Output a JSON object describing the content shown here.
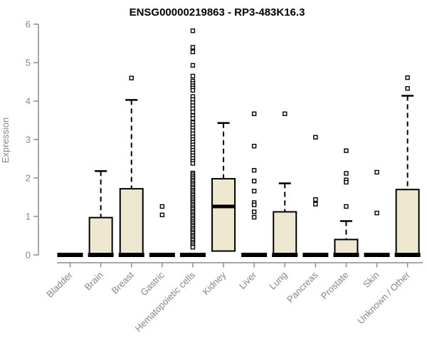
{
  "chart_data": {
    "type": "boxplot",
    "title": "ENSG00000219863 - RP3-483K16.3",
    "ylabel": "Expression",
    "xlabel": "",
    "ylim": [
      0,
      6
    ],
    "yticks": [
      0,
      1,
      2,
      3,
      4,
      5,
      6
    ],
    "grid": false,
    "legend": false,
    "categories": [
      "Bladder",
      "Brain",
      "Breast",
      "Gastric",
      "Hematopoietic cells",
      "Kidney",
      "Liver",
      "Lung",
      "Pancreas",
      "Prostate",
      "Skin",
      "Unknown / Other"
    ],
    "colors": {
      "box_fill": "#EDE8CF",
      "box_stroke": "#000000",
      "axis": "#8c8c8c",
      "tick_label": "#858585",
      "title": "#000000",
      "background": "#ffffff"
    },
    "boxes": [
      {
        "category": "Bladder",
        "q1": 0,
        "median": 0,
        "q3": 0,
        "whisker_low": 0,
        "whisker_high": 0,
        "outliers": []
      },
      {
        "category": "Brain",
        "q1": 0,
        "median": 0,
        "q3": 0.97,
        "whisker_low": 0,
        "whisker_high": 2.18,
        "outliers": []
      },
      {
        "category": "Breast",
        "q1": 0,
        "median": 0,
        "q3": 1.72,
        "whisker_low": 0,
        "whisker_high": 4.03,
        "outliers": [
          4.6
        ]
      },
      {
        "category": "Gastric",
        "q1": 0,
        "median": 0,
        "q3": 0,
        "whisker_low": 0,
        "whisker_high": 0,
        "outliers": [
          1.26,
          1.04
        ]
      },
      {
        "category": "Hematopoietic cells",
        "q1": 0,
        "median": 0,
        "q3": 0,
        "whisker_low": 0,
        "whisker_high": 0,
        "outliers": [
          5.83,
          5.4,
          5.28,
          4.93,
          4.65,
          4.52,
          4.46,
          4.4,
          4.34,
          4.28,
          4.12,
          4.04,
          3.96,
          3.88,
          3.8,
          3.72,
          3.62,
          3.55,
          3.44,
          3.37,
          3.3,
          3.23,
          3.15,
          3.07,
          3.0,
          2.93,
          2.86,
          2.79,
          2.72,
          2.65,
          2.58,
          2.51,
          2.44,
          2.38,
          2.13,
          2.09,
          2.04,
          2.0,
          1.95,
          1.91,
          1.86,
          1.82,
          1.77,
          1.73,
          1.68,
          1.64,
          1.59,
          1.55,
          1.5,
          1.46,
          1.41,
          1.37,
          1.32,
          1.28,
          1.23,
          1.19,
          1.14,
          1.1,
          1.05,
          1.01,
          0.96,
          0.92,
          0.87,
          0.83,
          0.78,
          0.74,
          0.69,
          0.65,
          0.6,
          0.56,
          0.51,
          0.47,
          0.42,
          0.38,
          0.33,
          0.29,
          0.24,
          0.2
        ]
      },
      {
        "category": "Kidney",
        "q1": 0.1,
        "median": 1.26,
        "q3": 1.98,
        "whisker_low": 0.1,
        "whisker_high": 3.43,
        "outliers": []
      },
      {
        "category": "Liver",
        "q1": 0,
        "median": 0,
        "q3": 0,
        "whisker_low": 0,
        "whisker_high": 0,
        "outliers": [
          3.67,
          2.83,
          2.2,
          1.92,
          1.66,
          1.36,
          1.3,
          1.12,
          0.98
        ]
      },
      {
        "category": "Lung",
        "q1": 0,
        "median": 0,
        "q3": 1.12,
        "whisker_low": 0,
        "whisker_high": 1.86,
        "outliers": [
          3.67
        ]
      },
      {
        "category": "Pancreas",
        "q1": 0,
        "median": 0,
        "q3": 0,
        "whisker_low": 0,
        "whisker_high": 0,
        "outliers": [
          3.06,
          1.44,
          1.32
        ]
      },
      {
        "category": "Prostate",
        "q1": 0,
        "median": 0,
        "q3": 0.4,
        "whisker_low": 0,
        "whisker_high": 0.88,
        "outliers": [
          2.71,
          2.12,
          1.95,
          1.89,
          1.26
        ]
      },
      {
        "category": "Skin",
        "q1": 0,
        "median": 0,
        "q3": 0,
        "whisker_low": 0,
        "whisker_high": 0,
        "outliers": [
          2.15,
          1.09
        ]
      },
      {
        "category": "Unknown / Other",
        "q1": 0,
        "median": 0,
        "q3": 1.7,
        "whisker_low": 0,
        "whisker_high": 4.14,
        "outliers": [
          4.61,
          4.33
        ]
      }
    ]
  }
}
